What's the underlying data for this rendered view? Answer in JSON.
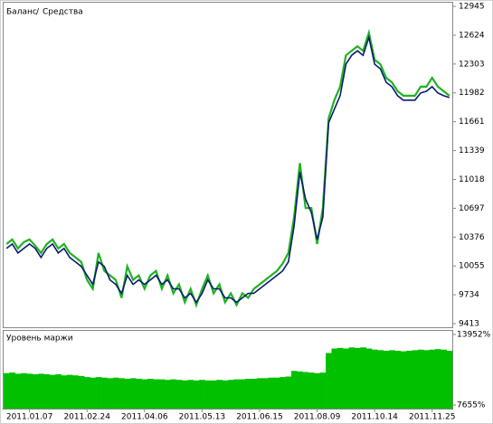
{
  "chart_data": [
    {
      "type": "line",
      "legend_separator": "/",
      "series": [
        {
          "name": "Баланс",
          "color": "#0b1a72",
          "values": [
            10250,
            10300,
            10200,
            10250,
            10300,
            10250,
            10150,
            10250,
            10300,
            10200,
            10250,
            10150,
            10100,
            10050,
            9950,
            9850,
            10100,
            10050,
            9900,
            9850,
            9750,
            9950,
            9850,
            9900,
            9850,
            9900,
            9950,
            9850,
            9900,
            9800,
            9800,
            9700,
            9750,
            9650,
            9750,
            9900,
            9800,
            9800,
            9700,
            9700,
            9650,
            9700,
            9750,
            9750,
            9800,
            9850,
            9900,
            9950,
            10000,
            10100,
            10500,
            11100,
            10800,
            10650,
            10350,
            10600,
            11650,
            11800,
            11950,
            12300,
            12400,
            12450,
            12400,
            12600,
            12300,
            12250,
            12100,
            12050,
            11950,
            11900,
            11900,
            11900,
            11980,
            12000,
            12050,
            11980,
            11950,
            11930
          ]
        },
        {
          "name": "Средства",
          "color": "#1fb31f",
          "values": [
            10300,
            10350,
            10250,
            10320,
            10350,
            10280,
            10200,
            10300,
            10350,
            10250,
            10300,
            10200,
            10150,
            10100,
            9900,
            9800,
            10200,
            10000,
            9950,
            9900,
            9700,
            10050,
            9900,
            9950,
            9800,
            9950,
            10000,
            9800,
            9950,
            9750,
            9850,
            9650,
            9800,
            9620,
            9800,
            9950,
            9750,
            9850,
            9650,
            9750,
            9620,
            9750,
            9700,
            9800,
            9850,
            9900,
            9950,
            10000,
            10080,
            10200,
            10600,
            11200,
            10700,
            10700,
            10300,
            10700,
            11700,
            11900,
            12050,
            12400,
            12450,
            12500,
            12450,
            12650,
            12350,
            12300,
            12150,
            12100,
            12000,
            11950,
            11950,
            11950,
            12050,
            12050,
            12150,
            12050,
            12000,
            11950
          ]
        }
      ],
      "ylim": [
        9413,
        12945
      ],
      "yticks": [
        9413,
        9734,
        10055,
        10376,
        10697,
        11018,
        11339,
        11661,
        11982,
        12303,
        12624,
        12945
      ]
    },
    {
      "type": "bar",
      "title": "Уровень маржи",
      "color": "#00c000",
      "categories": [
        null,
        null,
        null,
        null,
        "2011.01.07",
        null,
        null,
        null,
        null,
        null,
        null,
        null,
        null,
        null,
        "2011.02.24",
        null,
        null,
        null,
        null,
        null,
        null,
        null,
        null,
        null,
        "2011.04.06",
        null,
        null,
        null,
        null,
        null,
        null,
        null,
        null,
        null,
        "2011.05.13",
        null,
        null,
        null,
        null,
        null,
        null,
        null,
        null,
        null,
        "2011.06.15",
        null,
        null,
        null,
        null,
        null,
        null,
        null,
        null,
        null,
        "2011.08.09",
        null,
        null,
        null,
        null,
        null,
        null,
        null,
        null,
        null,
        "2011.10.14",
        null,
        null,
        null,
        null,
        null,
        null,
        null,
        null,
        null,
        "2011.11.25",
        null,
        null,
        null
      ],
      "values": [
        10500,
        10550,
        10450,
        10500,
        10450,
        10400,
        10450,
        10400,
        10350,
        10400,
        10300,
        10350,
        10300,
        10250,
        10150,
        10100,
        10150,
        10100,
        10050,
        10100,
        10050,
        10000,
        10050,
        10000,
        9950,
        10000,
        9950,
        9950,
        9900,
        9950,
        9900,
        9850,
        9900,
        9850,
        9900,
        9850,
        9850,
        9900,
        9850,
        9900,
        9950,
        9950,
        10000,
        10000,
        10050,
        10050,
        10100,
        10100,
        10150,
        10200,
        10700,
        10650,
        10600,
        10550,
        10500,
        10550,
        12300,
        12700,
        12750,
        12700,
        12800,
        12750,
        12800,
        12700,
        12600,
        12550,
        12500,
        12550,
        12500,
        12450,
        12500,
        12550,
        12600,
        12550,
        12600,
        12650,
        12600,
        12500
      ],
      "ylim": [
        7655,
        13952
      ],
      "yticks": [
        {
          "value": 7655,
          "label": "7655%"
        },
        {
          "value": 13952,
          "label": "13952%"
        }
      ]
    }
  ]
}
